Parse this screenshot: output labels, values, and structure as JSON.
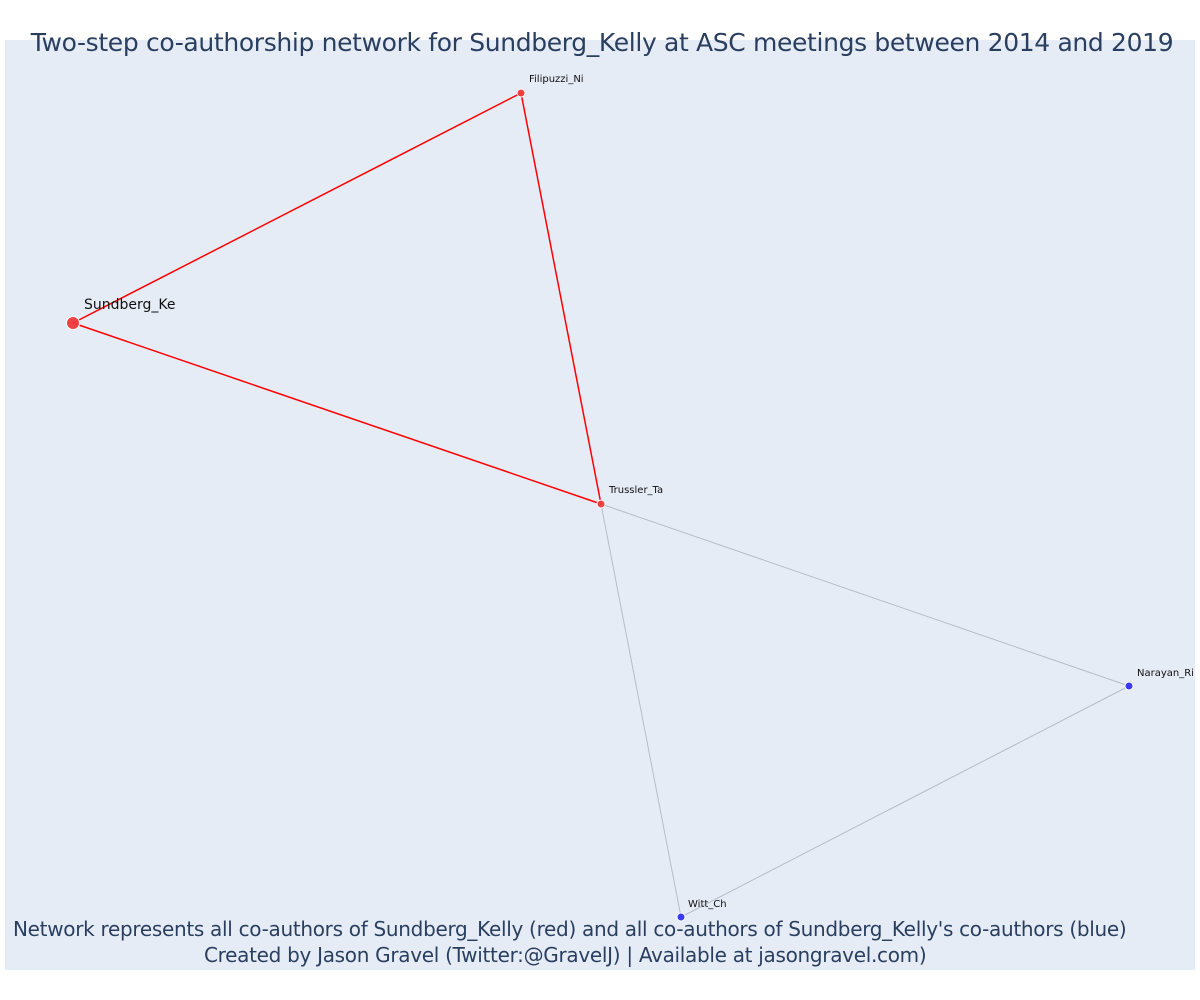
{
  "title": "Two-step co-authorship network for Sundberg_Kelly at ASC meetings between 2014 and 2019",
  "captions": [
    "Network represents all co-authors of Sundberg_Kelly (red) and all co-authors of Sundberg_Kelly's co-authors (blue)",
    "Created by Jason Gravel (Twitter:@GravelJ) | Available at jasongravel.com)"
  ],
  "colors": {
    "plot_background": "#e5ecf6",
    "focal_color": "#ff0000",
    "first_degree_node": "#f03a3a",
    "second_degree_node": "#3333ee",
    "secondary_edge": "#b8bcc8",
    "text": "#2a3f5f"
  },
  "nodes": [
    {
      "id": "Sundberg_Ke",
      "label": "Sundberg_Ke",
      "group": "focal"
    },
    {
      "id": "Filipuzzi_Ni",
      "label": "Filipuzzi_Ni",
      "group": "coauthor"
    },
    {
      "id": "Trussler_Ta",
      "label": "Trussler_Ta",
      "group": "coauthor"
    },
    {
      "id": "Narayan_Ri",
      "label": "Narayan_Ri",
      "group": "second_degree"
    },
    {
      "id": "Witt_Ch",
      "label": "Witt_Ch",
      "group": "second_degree"
    }
  ],
  "edges": [
    {
      "source": "Sundberg_Ke",
      "target": "Filipuzzi_Ni",
      "type": "focal"
    },
    {
      "source": "Sundberg_Ke",
      "target": "Trussler_Ta",
      "type": "focal"
    },
    {
      "source": "Filipuzzi_Ni",
      "target": "Trussler_Ta",
      "type": "focal"
    },
    {
      "source": "Trussler_Ta",
      "target": "Narayan_Ri",
      "type": "secondary"
    },
    {
      "source": "Trussler_Ta",
      "target": "Witt_Ch",
      "type": "secondary"
    },
    {
      "source": "Narayan_Ri",
      "target": "Witt_Ch",
      "type": "secondary"
    }
  ]
}
